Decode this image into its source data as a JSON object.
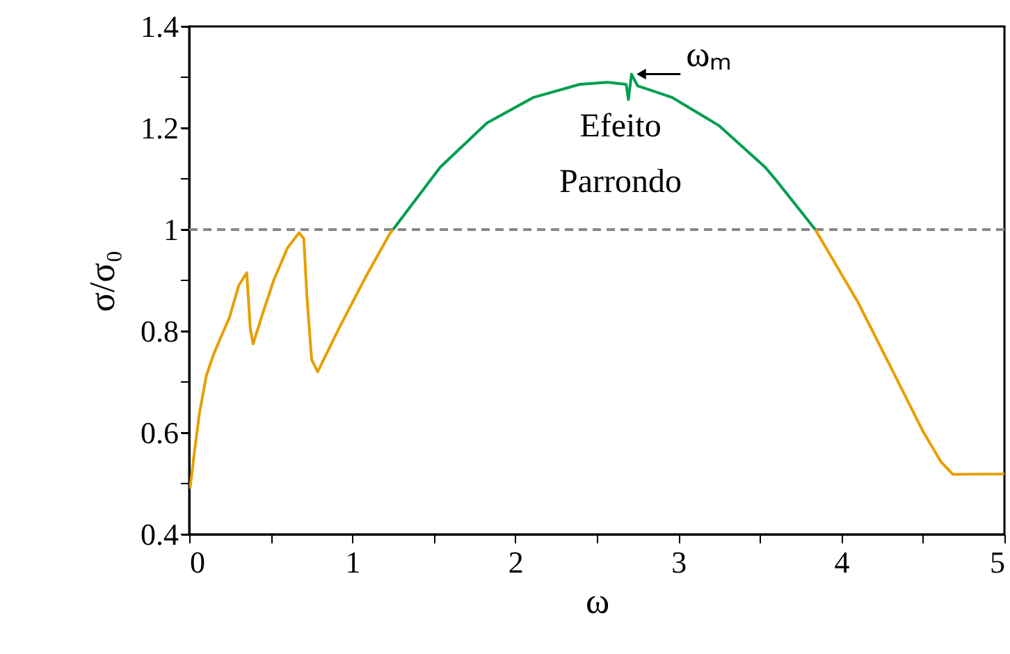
{
  "chart_data": {
    "type": "line",
    "xlabel": "ω",
    "ylabel": "σ/σ₀",
    "xlim": [
      0,
      5
    ],
    "ylim": [
      0.4,
      1.4
    ],
    "xticks": [
      0,
      {
        "value": 0.5,
        "label": null
      },
      1,
      {
        "value": 1.5,
        "label": null
      },
      2,
      {
        "value": 2.5,
        "label": null
      },
      3,
      {
        "value": 3.5,
        "label": null
      },
      4,
      {
        "value": 4.5,
        "label": null
      },
      5
    ],
    "yticks": [
      0.4,
      {
        "value": 0.5,
        "label": null
      },
      0.6,
      {
        "value": 0.7,
        "label": null
      },
      0.8,
      {
        "value": 0.9,
        "label": null
      },
      1,
      {
        "value": 1.1,
        "label": null
      },
      1.2,
      {
        "value": 1.3,
        "label": null
      },
      1.4
    ],
    "grid": false,
    "line_style": "solid",
    "marker": "none",
    "series": [
      {
        "color": "#e69f00",
        "x": [
          0.005,
          0.034,
          0.063,
          0.105,
          0.148,
          0.19,
          0.247,
          0.304,
          0.353,
          0.375,
          0.392,
          0.447,
          0.518,
          0.603,
          0.674,
          0.703,
          0.722,
          0.751,
          0.788,
          0.916,
          1.086,
          1.229,
          1.25
        ],
        "values": [
          0.49,
          0.567,
          0.639,
          0.712,
          0.753,
          0.785,
          0.827,
          0.89,
          0.915,
          0.804,
          0.775,
          0.831,
          0.9,
          0.964,
          0.994,
          0.982,
          0.868,
          0.744,
          0.72,
          0.804,
          0.909,
          0.991,
          1.0
        ]
      },
      {
        "color": "#009e50",
        "x": [
          1.25,
          1.54,
          1.826,
          2.11,
          2.395,
          2.566,
          2.68,
          2.694,
          2.713,
          2.75,
          2.963,
          3.248,
          3.532,
          3.603,
          3.84
        ],
        "values": [
          1.0,
          1.123,
          1.21,
          1.26,
          1.286,
          1.29,
          1.286,
          1.256,
          1.306,
          1.283,
          1.26,
          1.205,
          1.123,
          1.096,
          1.0
        ]
      },
      {
        "color": "#e69f00",
        "x": [
          3.84,
          4.1,
          4.3,
          4.5,
          4.61,
          4.684,
          4.983,
          5.0
        ],
        "values": [
          1.0,
          0.858,
          0.731,
          0.603,
          0.543,
          0.518,
          0.519,
          0.52
        ]
      }
    ],
    "ref_lines": [
      {
        "axis": "y",
        "value": 1,
        "color": "#888888",
        "line_style": "dashed"
      }
    ],
    "annotations": [
      "Efeito Parrondo",
      {
        "text": "ωₘ",
        "x": 2.713,
        "y": 1.306
      }
    ]
  }
}
